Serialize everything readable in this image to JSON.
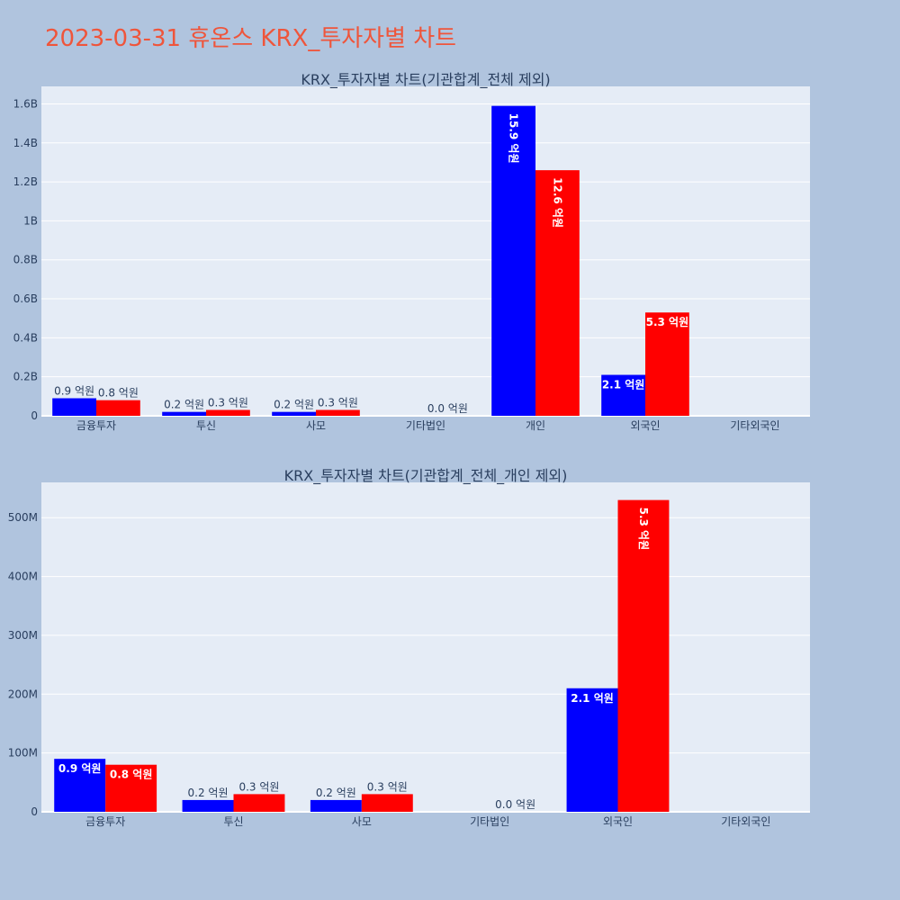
{
  "title": "2023-03-31 휴온스 KRX_투자자별 차트",
  "colors": {
    "buy": "#0000ff",
    "sell": "#ff0000",
    "plot_bg": "#e5ecf6",
    "page_bg": "#b0c4de",
    "title": "#ef553b"
  },
  "chart_data": [
    {
      "type": "bar",
      "title": "KRX_투자자별 차트(기관합계_전체 제외)",
      "categories": [
        "금융투자",
        "투신",
        "사모",
        "기타법인",
        "개인",
        "외국인",
        "기타외국인"
      ],
      "series": [
        {
          "values": [
            90000000,
            20000000,
            20000000,
            0,
            1590000000,
            210000000,
            0
          ],
          "labels": [
            "0.9 억원",
            "0.2 억원",
            "0.2 억원",
            "",
            "15.9 억원",
            "2.1 억원",
            ""
          ]
        },
        {
          "values": [
            80000000,
            30000000,
            30000000,
            0,
            1260000000,
            530000000,
            0
          ],
          "labels": [
            "0.8 억원",
            "0.3 억원",
            "0.3 억원",
            "0.0 억원",
            "12.6 억원",
            "5.3 억원",
            ""
          ]
        }
      ],
      "ylim": [
        0,
        1690000000
      ],
      "yticks": [
        0,
        200000000,
        400000000,
        600000000,
        800000000,
        1000000000,
        1200000000,
        1400000000,
        1600000000
      ],
      "yticklabels": [
        "0",
        "0.2B",
        "0.4B",
        "0.6B",
        "0.8B",
        "1B",
        "1.2B",
        "1.4B",
        "1.6B"
      ],
      "grid": true
    },
    {
      "type": "bar",
      "title": "KRX_투자자별 차트(기관합계_전체_개인 제외)",
      "categories": [
        "금융투자",
        "투신",
        "사모",
        "기타법인",
        "외국인",
        "기타외국인"
      ],
      "series": [
        {
          "values": [
            90000000,
            20000000,
            20000000,
            0,
            210000000,
            0
          ],
          "labels": [
            "0.9 억원",
            "0.2 억원",
            "0.2 억원",
            "",
            "2.1 억원",
            ""
          ]
        },
        {
          "values": [
            80000000,
            30000000,
            30000000,
            0,
            530000000,
            0
          ],
          "labels": [
            "0.8 억원",
            "0.3 억원",
            "0.3 억원",
            "0.0 억원",
            "5.3 억원",
            ""
          ]
        }
      ],
      "ylim": [
        0,
        560000000
      ],
      "yticks": [
        0,
        100000000,
        200000000,
        300000000,
        400000000,
        500000000
      ],
      "yticklabels": [
        "0",
        "100M",
        "200M",
        "300M",
        "400M",
        "500M"
      ],
      "grid": true
    }
  ]
}
